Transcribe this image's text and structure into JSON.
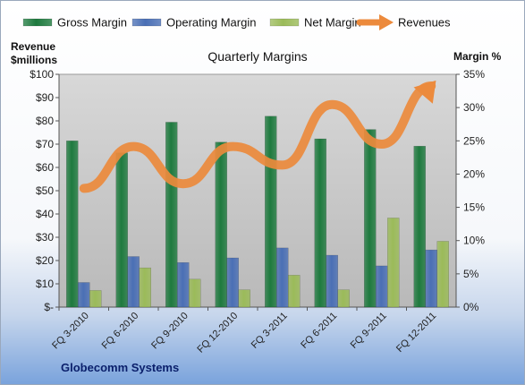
{
  "colors": {
    "gross_margin": "#1e7a3e",
    "operating_margin": "#4a6fb5",
    "net_margin": "#9bbb59",
    "revenues": "#ec8a3c",
    "plot_bg": "#c8c8c8"
  },
  "chart_data": {
    "type": "bar",
    "title": "Quarterly Margins",
    "ylabel_left": "Revenue $millions",
    "ylabel_left_lines": [
      "Revenue",
      "$millions"
    ],
    "ylabel_right": "Margin %",
    "company_label": "Globecomm Systems",
    "categories": [
      "FQ 3-2010",
      "FQ 6-2010",
      "FQ 9-2010",
      "FQ 12-2010",
      "FQ 3-2011",
      "FQ 6-2011",
      "FQ 9-2011",
      "FQ 12-2011"
    ],
    "left_ticks": [
      "$-",
      "$10",
      "$20",
      "$30",
      "$40",
      "$50",
      "$60",
      "$70",
      "$80",
      "$90",
      "$100"
    ],
    "right_ticks": [
      "0%",
      "5%",
      "10%",
      "15%",
      "20%",
      "25%",
      "30%",
      "35%"
    ],
    "ylim_left": [
      0,
      100
    ],
    "ylim_right": [
      0,
      35
    ],
    "grid": false,
    "legend_position": "top",
    "series": [
      {
        "name": "Gross Margin",
        "axis": "right",
        "kind": "bar",
        "values": [
          25.0,
          23.2,
          27.8,
          24.8,
          28.7,
          25.3,
          26.7,
          24.2
        ]
      },
      {
        "name": "Operating Margin",
        "axis": "right",
        "kind": "bar",
        "values": [
          3.7,
          7.6,
          6.7,
          7.4,
          8.9,
          7.8,
          6.2,
          8.6
        ]
      },
      {
        "name": "Net Margin",
        "axis": "right",
        "kind": "bar",
        "values": [
          2.5,
          5.9,
          4.2,
          2.6,
          4.8,
          2.6,
          13.4,
          9.9
        ]
      },
      {
        "name": "Revenues",
        "axis": "left",
        "kind": "line",
        "values": [
          51,
          69,
          53,
          69,
          61,
          87,
          70,
          95
        ]
      }
    ]
  }
}
